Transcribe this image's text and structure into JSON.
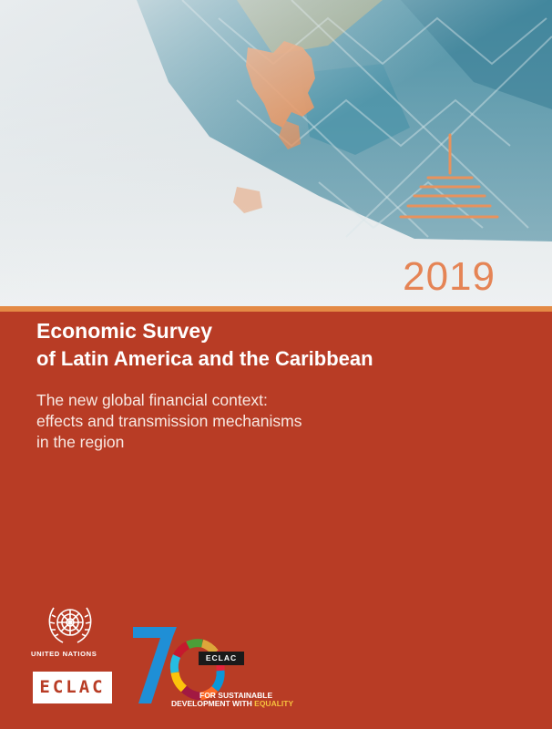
{
  "cover": {
    "year": "2019",
    "title_main": "Economic Survey",
    "title_sub": "of Latin America and the Caribbean",
    "subtitle_lines": [
      "The new global financial context:",
      "effects and transmission mechanisms",
      "in the region"
    ]
  },
  "logos": {
    "un_label": "UNITED NATIONS",
    "eclac_label": "ECLAC",
    "anniversary_label": "ECLAC",
    "tagline_line1": "FOR SUSTAINABLE",
    "tagline_line2": "DEVELOPMENT WITH",
    "tagline_highlight": "EQUALITY"
  },
  "colors": {
    "background": "#b83c25",
    "accent_band": "#e48a45",
    "year": "#e58455",
    "equality": "#f7c23d"
  }
}
